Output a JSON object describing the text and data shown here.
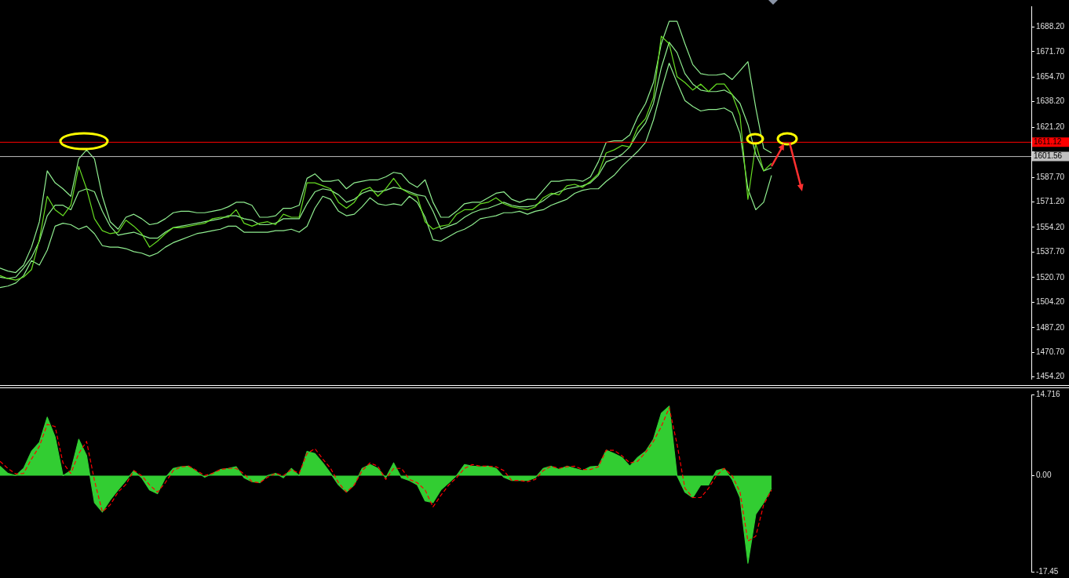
{
  "chart_data": [
    {
      "type": "line",
      "marker": "none",
      "tick_labels": "y",
      "categories": [
        null,
        null,
        null,
        null,
        null,
        null,
        null,
        null,
        null,
        null,
        null,
        null,
        null,
        null,
        null,
        null,
        null,
        null,
        null,
        null,
        null,
        null,
        null,
        null,
        null,
        null,
        null,
        null,
        null,
        null,
        null,
        null,
        null,
        null,
        null,
        null,
        null,
        null,
        null,
        null,
        null,
        null,
        null,
        null,
        null,
        null,
        null,
        null,
        null,
        null,
        null,
        null,
        null,
        null,
        null,
        null,
        null,
        null,
        null,
        null,
        null,
        null,
        null,
        null,
        null,
        null,
        null,
        null,
        null,
        null,
        null,
        null,
        null,
        null,
        null,
        null,
        null,
        null,
        null,
        null,
        null,
        null,
        null,
        null,
        null,
        null,
        null,
        null,
        null,
        null,
        null,
        null,
        null,
        null,
        null,
        null,
        null,
        null,
        null,
        null,
        null,
        null,
        null,
        null,
        null,
        null,
        null,
        null,
        null,
        null,
        null,
        null,
        null,
        null,
        null,
        null,
        null,
        null,
        null,
        null,
        null,
        null,
        null,
        null,
        null,
        null,
        null,
        null,
        null,
        null,
        null,
        null
      ],
      "ylim": [
        1453,
        1702
      ],
      "yticks": [
        {
          "value": 1454.2,
          "label": "1454.20"
        },
        {
          "value": 1470.7,
          "label": "1470.70"
        },
        {
          "value": 1487.2,
          "label": "1487.20"
        },
        {
          "value": 1504.2,
          "label": "1504.20"
        },
        {
          "value": 1520.7,
          "label": "1520.70"
        },
        {
          "value": 1537.7,
          "label": "1537.70"
        },
        {
          "value": 1554.2,
          "label": "1554.20"
        },
        {
          "value": 1571.2,
          "label": "1571.20"
        },
        {
          "value": 1587.7,
          "label": "1587.70"
        },
        {
          "value": 1604.7,
          "label": null
        },
        {
          "value": 1621.2,
          "label": "1621.20"
        },
        {
          "value": 1638.2,
          "label": "1638.20"
        },
        {
          "value": 1654.7,
          "label": "1654.70"
        },
        {
          "value": 1671.7,
          "label": "1671.70"
        },
        {
          "value": 1688.2,
          "label": "1688.20"
        }
      ],
      "ref_lines": [
        {
          "axis": "y",
          "value": 1611.12,
          "label": "1611.12",
          "color": "#ff0000"
        },
        {
          "axis": "y",
          "value": 1601.56,
          "label": "1601.56",
          "color": "#c0c0c0"
        }
      ],
      "series": [
        {
          "color": "#90ee90",
          "values": [
            1527,
            1525,
            1524,
            1529,
            1541,
            1558,
            1592,
            1584,
            1580,
            1575,
            1600,
            1606,
            1600,
            1575,
            1558,
            1553,
            1561,
            1563,
            1560,
            1556,
            1557,
            1560,
            1564,
            1565,
            1565,
            1564,
            1564,
            1565,
            1566,
            1568,
            1571,
            1571,
            1569,
            1561,
            1561,
            1562,
            1567,
            1567,
            1569,
            1587,
            1590,
            1585,
            1585,
            1586,
            1580,
            1584,
            1585,
            1586,
            1586,
            1588,
            1591,
            1590,
            1584,
            1581,
            1586,
            1571,
            1561,
            1561,
            1565,
            1570,
            1571,
            1571,
            1574,
            1577,
            1578,
            1573,
            1571,
            1573,
            1573,
            1579,
            1585,
            1585,
            1586,
            1586,
            1585,
            1588,
            1598,
            1611,
            1612,
            1612,
            1616,
            1628,
            1637,
            1651,
            1677,
            1692,
            1692,
            1677,
            1663,
            1657,
            1656,
            1656,
            1657,
            1653,
            1659,
            1665,
            1634,
            1607,
            1604,
            null,
            null,
            null,
            null,
            null,
            null,
            null,
            null,
            null,
            null,
            null,
            null,
            null,
            null,
            null,
            null,
            null,
            null,
            null,
            null,
            null,
            null,
            null,
            null,
            null,
            null,
            null,
            null,
            null,
            null,
            null,
            null,
            null
          ]
        },
        {
          "color": "#90ee90",
          "values": [
            1521,
            1520,
            1521,
            1527,
            1534,
            1545,
            1562,
            1569,
            1569,
            1566,
            1578,
            1580,
            1578,
            1565,
            1555,
            1549,
            1550,
            1551,
            1549,
            1547,
            1547,
            1551,
            1554,
            1555,
            1556,
            1557,
            1558,
            1559,
            1560,
            1562,
            1562,
            1560,
            1559,
            1556,
            1556,
            1557,
            1560,
            1560,
            1560,
            1570,
            1578,
            1580,
            1579,
            1576,
            1571,
            1573,
            1577,
            1579,
            1578,
            1579,
            1581,
            1580,
            1578,
            1576,
            1575,
            1565,
            1553,
            1555,
            1557,
            1561,
            1564,
            1566,
            1567,
            1569,
            1571,
            1569,
            1568,
            1568,
            1569,
            1572,
            1576,
            1578,
            1580,
            1581,
            1582,
            1584,
            1589,
            1598,
            1600,
            1603,
            1608,
            1617,
            1624,
            1637,
            1661,
            1678,
            1671,
            1657,
            1650,
            1646,
            1645,
            1645,
            1646,
            1643,
            1637,
            1623,
            1603,
            1592,
            1594,
            null,
            null,
            null,
            null,
            null,
            null,
            null,
            null,
            null,
            null,
            null,
            null,
            null,
            null,
            null,
            null,
            null,
            null,
            null,
            null,
            null,
            null,
            null,
            null,
            null,
            null,
            null,
            null,
            null,
            null,
            null,
            null,
            null
          ]
        },
        {
          "color": "#90ee90",
          "values": [
            1514,
            1515,
            1517,
            1522,
            1532,
            1529,
            1539,
            1555,
            1557,
            1556,
            1553,
            1555,
            1550,
            1542,
            1541,
            1541,
            1540,
            1538,
            1537,
            1535,
            1537,
            1541,
            1544,
            1546,
            1548,
            1550,
            1551,
            1552,
            1553,
            1555,
            1555,
            1551,
            1551,
            1551,
            1551,
            1552,
            1552,
            1553,
            1551,
            1555,
            1567,
            1575,
            1573,
            1565,
            1562,
            1563,
            1568,
            1574,
            1570,
            1569,
            1570,
            1569,
            1575,
            1571,
            1561,
            1546,
            1545,
            1548,
            1551,
            1553,
            1556,
            1560,
            1561,
            1562,
            1564,
            1564,
            1565,
            1563,
            1565,
            1566,
            1569,
            1571,
            1573,
            1577,
            1579,
            1580,
            1580,
            1585,
            1589,
            1595,
            1600,
            1605,
            1611,
            1626,
            1646,
            1664,
            1651,
            1639,
            1635,
            1632,
            1633,
            1633,
            1634,
            1631,
            1617,
            1580,
            1566,
            1571,
            1589,
            null,
            null,
            null,
            null,
            null,
            null,
            null,
            null,
            null,
            null,
            null,
            null,
            null,
            null,
            null,
            null,
            null,
            null,
            null,
            null,
            null,
            null,
            null,
            null,
            null,
            null,
            null,
            null,
            null,
            null,
            null,
            null,
            null
          ]
        },
        {
          "color": "#66dd22",
          "values": [
            1522,
            1520,
            1519,
            1521,
            1526,
            1546,
            1575,
            1566,
            1562,
            1569,
            1595,
            1580,
            1560,
            1552,
            1550,
            1551,
            1559,
            1555,
            1550,
            1541,
            1545,
            1550,
            1554,
            1554,
            1555,
            1556,
            1557,
            1560,
            1561,
            1561,
            1566,
            1557,
            1555,
            1557,
            1558,
            1556,
            1563,
            1561,
            1561,
            1584,
            1584,
            1582,
            1580,
            1571,
            1567,
            1571,
            1579,
            1581,
            1575,
            1580,
            1587,
            1580,
            1577,
            1575,
            1558,
            1553,
            1555,
            1556,
            1563,
            1566,
            1566,
            1570,
            1571,
            1574,
            1570,
            1568,
            1567,
            1566,
            1568,
            1574,
            1577,
            1576,
            1582,
            1583,
            1581,
            1585,
            1590,
            1604,
            1606,
            1609,
            1608,
            1621,
            1627,
            1641,
            1682,
            1677,
            1655,
            1651,
            1646,
            1650,
            1645,
            1650,
            1650,
            1643,
            1629,
            1573,
            1610,
            1592,
            1597,
            null,
            null,
            null,
            null,
            null,
            null,
            null,
            null,
            null,
            null,
            null,
            null,
            null,
            null,
            null,
            null,
            null,
            null,
            null,
            null,
            null,
            null,
            null,
            null,
            null,
            null,
            null,
            null,
            null,
            null,
            null,
            null,
            null
          ]
        }
      ]
    },
    {
      "type": "area",
      "marker": "none",
      "tick_labels": "y",
      "categories": [
        null,
        null,
        null,
        null,
        null,
        null,
        null,
        null,
        null,
        null,
        null,
        null,
        null,
        null,
        null,
        null,
        null,
        null,
        null,
        null,
        null,
        null,
        null,
        null,
        null,
        null,
        null,
        null,
        null,
        null,
        null,
        null,
        null,
        null,
        null,
        null,
        null,
        null,
        null,
        null,
        null,
        null,
        null,
        null,
        null,
        null,
        null,
        null,
        null,
        null,
        null,
        null,
        null,
        null,
        null,
        null,
        null,
        null,
        null,
        null,
        null,
        null,
        null,
        null,
        null,
        null,
        null,
        null,
        null,
        null,
        null,
        null,
        null,
        null,
        null,
        null,
        null,
        null,
        null,
        null,
        null,
        null,
        null,
        null,
        null,
        null,
        null,
        null,
        null,
        null,
        null,
        null,
        null,
        null,
        null,
        null,
        null,
        null,
        null,
        null,
        null,
        null,
        null,
        null,
        null,
        null,
        null,
        null,
        null,
        null,
        null,
        null,
        null,
        null,
        null,
        null,
        null,
        null,
        null,
        null,
        null,
        null,
        null,
        null,
        null,
        null,
        null,
        null,
        null,
        null,
        null,
        null
      ],
      "ylim": [
        -17.45,
        14.716
      ],
      "yticks": [
        {
          "value": -17.45,
          "label": "-17.45"
        },
        {
          "value": 0,
          "label": "0.00"
        },
        {
          "value": 14.716,
          "label": "14.716"
        }
      ],
      "series": [
        {
          "type": "area",
          "color": "#32cd32",
          "values": [
            1.7,
            0.4,
            0,
            1.3,
            4.4,
            6.0,
            10.6,
            7.0,
            0,
            0.9,
            6.6,
            3.6,
            -4.9,
            -6.6,
            -4.4,
            -2.6,
            -0.9,
            0.9,
            -0.4,
            -2.6,
            -3.3,
            -0.4,
            1.3,
            1.6,
            1.7,
            0.7,
            -0.3,
            0.4,
            1.1,
            1.3,
            1.6,
            -0.4,
            -1.1,
            -1.3,
            0,
            0.4,
            -0.4,
            1.3,
            0,
            4.4,
            4.0,
            2.3,
            0.4,
            -1.7,
            -3.0,
            -1.7,
            1.3,
            2.0,
            1.3,
            -0.4,
            2.3,
            -0.4,
            -0.9,
            -1.7,
            -4.6,
            -4.9,
            -2.6,
            -1.3,
            0,
            2.0,
            1.7,
            1.6,
            1.7,
            1.3,
            -0.3,
            -0.9,
            -0.9,
            -0.9,
            -0.4,
            1.3,
            1.7,
            1.1,
            1.7,
            1.3,
            0.9,
            1.6,
            1.7,
            4.6,
            4.0,
            3.3,
            1.7,
            3.3,
            4.4,
            6.6,
            11.3,
            12.6,
            0,
            -3.0,
            -4.0,
            -1.7,
            -1.7,
            0.9,
            1.3,
            -0.7,
            -4.0,
            -15.9,
            -7.0,
            -4.9,
            -2.3,
            null,
            null,
            null,
            null,
            null,
            null,
            null,
            null,
            null,
            null,
            null,
            null,
            null,
            null,
            null,
            null,
            null,
            null,
            null,
            null,
            null,
            null,
            null,
            null,
            null,
            null,
            null,
            null,
            null,
            null,
            null,
            null,
            null
          ]
        },
        {
          "type": "line",
          "color": "#ff0000",
          "line_style": "dashed",
          "values": [
            2.6,
            1.3,
            0.3,
            0.4,
            3.0,
            5.3,
            9.3,
            8.9,
            2.3,
            0.4,
            4.0,
            6.2,
            -0.9,
            -6.6,
            -5.3,
            -3.0,
            -1.6,
            0.9,
            0,
            -1.7,
            -3.0,
            -1.3,
            0.9,
            1.6,
            1.7,
            0.9,
            0,
            0.4,
            1.1,
            1.3,
            1.3,
            0.3,
            -1.1,
            -1.3,
            -0.3,
            0.4,
            0,
            1.1,
            0.4,
            4.0,
            4.9,
            3.0,
            1.3,
            -1.3,
            -3.0,
            -1.7,
            0.9,
            2.3,
            1.7,
            -0.7,
            1.3,
            1.3,
            -0.7,
            -1.3,
            -2.6,
            -5.7,
            -3.6,
            -1.7,
            -0.4,
            1.3,
            2.0,
            1.7,
            1.7,
            1.6,
            0.9,
            -0.9,
            -0.9,
            -1.1,
            -0.7,
            0.9,
            1.7,
            1.3,
            1.6,
            1.7,
            1.1,
            1.1,
            1.6,
            4.6,
            4.6,
            3.6,
            2.3,
            2.6,
            4.2,
            6.2,
            8.9,
            12.3,
            5.7,
            -2.3,
            -4.0,
            -4.0,
            -2.3,
            0,
            1.3,
            0,
            -3.0,
            -11.9,
            -11.0,
            -5.3,
            -2.6,
            null,
            null,
            null,
            null,
            null,
            null,
            null,
            null,
            null,
            null,
            null,
            null,
            null,
            null,
            null,
            null,
            null,
            null,
            null,
            null,
            null,
            null,
            null,
            null,
            null,
            null,
            null,
            null,
            null,
            null,
            null,
            null,
            null
          ]
        }
      ]
    }
  ]
}
